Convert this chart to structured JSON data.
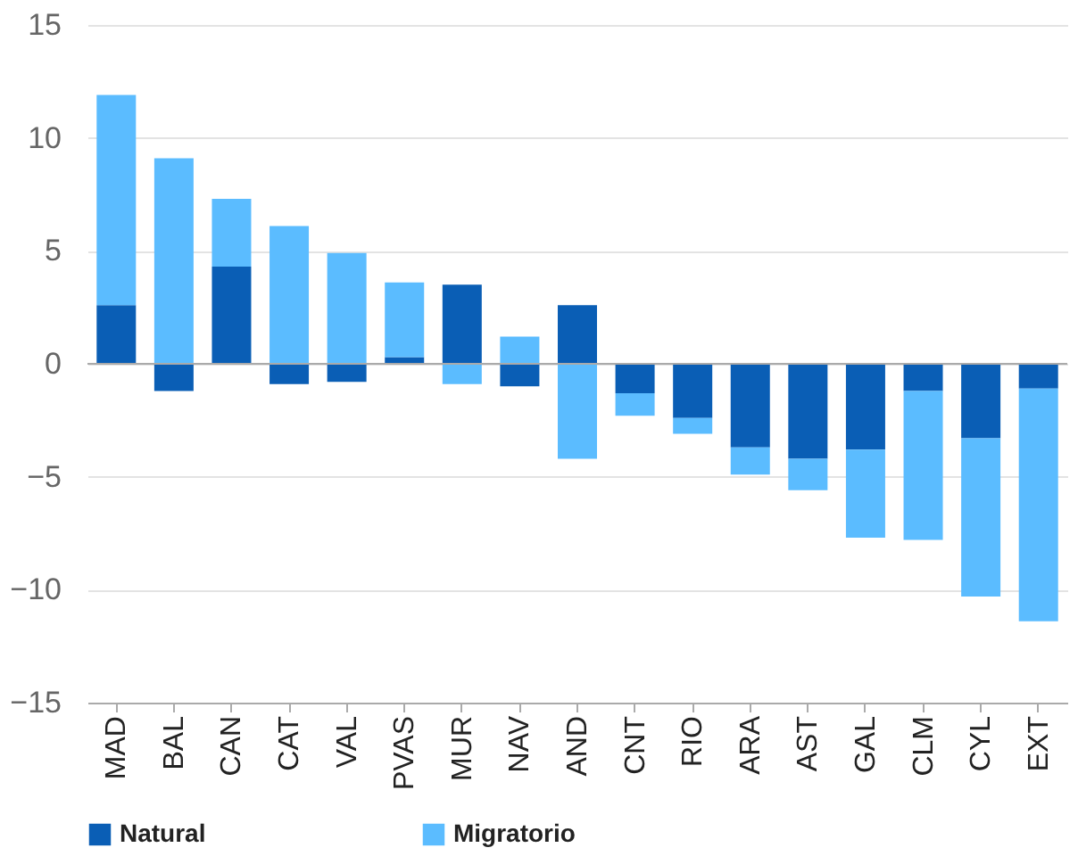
{
  "chart_data": {
    "type": "bar",
    "stacked": true,
    "categories": [
      "MAD",
      "BAL",
      "CAN",
      "CAT",
      "VAL",
      "PVAS",
      "MUR",
      "NAV",
      "AND",
      "CNT",
      "RIO",
      "ARA",
      "AST",
      "GAL",
      "CLM",
      "CYL",
      "EXT"
    ],
    "series": [
      {
        "name": "Natural",
        "color": "#0a5eb5",
        "values": [
          2.6,
          -1.2,
          4.3,
          -0.9,
          -0.8,
          0.3,
          3.5,
          -1.0,
          2.6,
          -1.3,
          -2.4,
          -3.7,
          -4.2,
          -3.8,
          -1.2,
          -3.3,
          -1.1
        ]
      },
      {
        "name": "Migratorio",
        "color": "#5bbcff",
        "values": [
          9.3,
          9.1,
          3.0,
          6.1,
          4.9,
          3.3,
          -0.9,
          1.2,
          -4.2,
          -1.0,
          -0.7,
          -1.2,
          -1.4,
          -3.9,
          -6.6,
          -7.0,
          -10.3
        ]
      }
    ],
    "ylim": [
      -15,
      15
    ],
    "yticks": [
      -15,
      -10,
      -5,
      0,
      5,
      10,
      15
    ],
    "grid": "y",
    "legend": "bottom"
  }
}
